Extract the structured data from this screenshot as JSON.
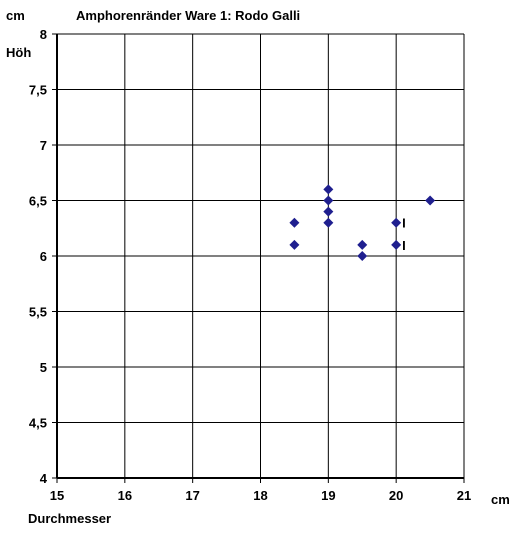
{
  "chart_data": {
    "type": "scatter",
    "title": "Amphorenränder Ware 1: Rodo Galli",
    "x_unit": "cm",
    "y_unit": "cm",
    "xlabel": "Durchmesser",
    "ylabel": "Höh",
    "xlim": [
      15,
      21
    ],
    "ylim": [
      4,
      8
    ],
    "grid": true,
    "x_ticks": [
      "15",
      "16",
      "17",
      "18",
      "19",
      "20",
      "21"
    ],
    "y_ticks": [
      "4",
      "4,5",
      "5",
      "5,5",
      "6",
      "6,5",
      "7",
      "7,5",
      "8"
    ],
    "marker_color": "#1f1f8f",
    "points": [
      {
        "x": 18.5,
        "y": 6.3
      },
      {
        "x": 18.5,
        "y": 6.1
      },
      {
        "x": 19.0,
        "y": 6.6
      },
      {
        "x": 19.0,
        "y": 6.5
      },
      {
        "x": 19.0,
        "y": 6.4
      },
      {
        "x": 19.0,
        "y": 6.3
      },
      {
        "x": 19.5,
        "y": 6.1
      },
      {
        "x": 19.5,
        "y": 6.0
      },
      {
        "x": 20.0,
        "y": 6.3
      },
      {
        "x": 20.0,
        "y": 6.1
      },
      {
        "x": 20.5,
        "y": 6.5
      }
    ],
    "annotations": [
      {
        "text": "I",
        "x": 20.0,
        "y": 6.3
      },
      {
        "text": "I",
        "x": 20.0,
        "y": 6.1
      }
    ]
  }
}
